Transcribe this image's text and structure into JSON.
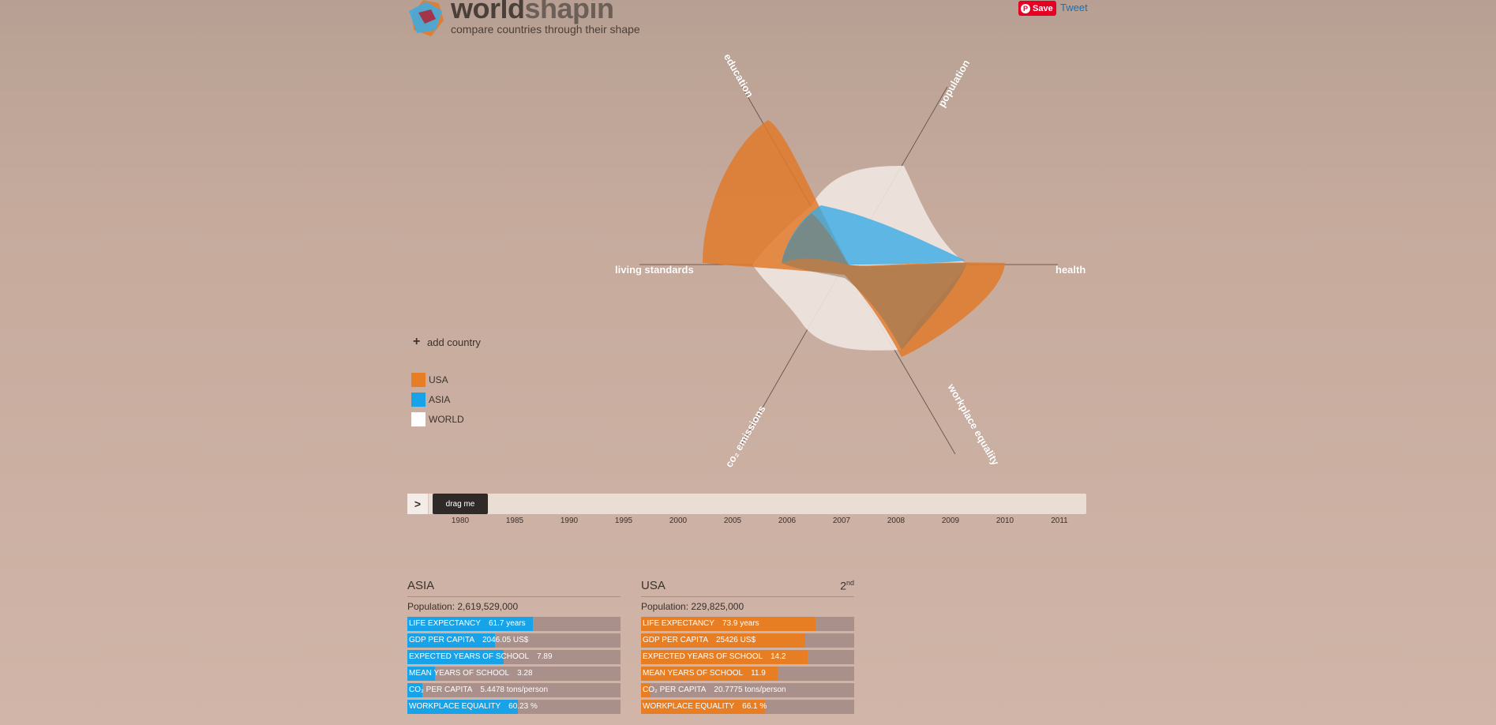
{
  "header": {
    "logo_word_1": "world",
    "logo_word_2": "shapin",
    "tagline": "compare countries through their shape"
  },
  "social": {
    "save_label": "Save",
    "tweet_label": "Tweet"
  },
  "radar": {
    "axes": [
      "education",
      "population",
      "health",
      "workplace equality",
      "co₂ emissions",
      "living standards"
    ],
    "series": [
      {
        "name": "WORLD",
        "color": "#efe6e1"
      },
      {
        "name": "USA",
        "color": "#e07a2c"
      },
      {
        "name": "ASIA",
        "color": "#3aabe6"
      }
    ]
  },
  "controls": {
    "add_country_label": "add country"
  },
  "legend": [
    {
      "name": "USA",
      "color": "#e87e23"
    },
    {
      "name": "ASIA",
      "color": "#18a3e8"
    },
    {
      "name": "WORLD",
      "color": "#ffffff"
    }
  ],
  "timeline": {
    "play_label": ">",
    "handle_label": "drag me",
    "years": [
      "1980",
      "1985",
      "1990",
      "1995",
      "2000",
      "2005",
      "2006",
      "2007",
      "2008",
      "2009",
      "2010",
      "2011"
    ]
  },
  "panels": [
    {
      "title": "ASIA",
      "rank": "",
      "rank_suffix": "",
      "population": "Population: 2,619,529,000",
      "color": "#18a3e8",
      "metrics": [
        {
          "label": "LIFE EXPECTANCY",
          "value": "61.7 years",
          "level": 0.59
        },
        {
          "label": "GDP PER CAPITA",
          "value": "2046.05 US$",
          "level": 0.41
        },
        {
          "label": "EXPECTED YEARS OF SCHOOL",
          "value": "7.89",
          "level": 0.45
        },
        {
          "label": "MEAN YEARS OF SCHOOL",
          "value": "3.28",
          "level": 0.13
        },
        {
          "label": "CO₂ PER CAPITA",
          "value": "5.4478 tons/person",
          "level": 0.07
        },
        {
          "label": "WORKPLACE EQUALITY",
          "value": "60.23 %",
          "level": 0.52
        }
      ]
    },
    {
      "title": "USA",
      "rank": "2",
      "rank_suffix": "nd",
      "population": "Population: 229,825,000",
      "color": "#e87e23",
      "metrics": [
        {
          "label": "LIFE EXPECTANCY",
          "value": "73.9 years",
          "level": 0.82
        },
        {
          "label": "GDP PER CAPITA",
          "value": "25426 US$",
          "level": 0.77
        },
        {
          "label": "EXPECTED YEARS OF SCHOOL",
          "value": "14.2",
          "level": 0.78
        },
        {
          "label": "MEAN YEARS OF SCHOOL",
          "value": "11.9",
          "level": 0.64
        },
        {
          "label": "CO₂ PER CAPITA",
          "value": "20.7775 tons/person",
          "level": 0.04
        },
        {
          "label": "WORKPLACE EQUALITY",
          "value": "66.1 %",
          "level": 0.58
        }
      ]
    }
  ]
}
